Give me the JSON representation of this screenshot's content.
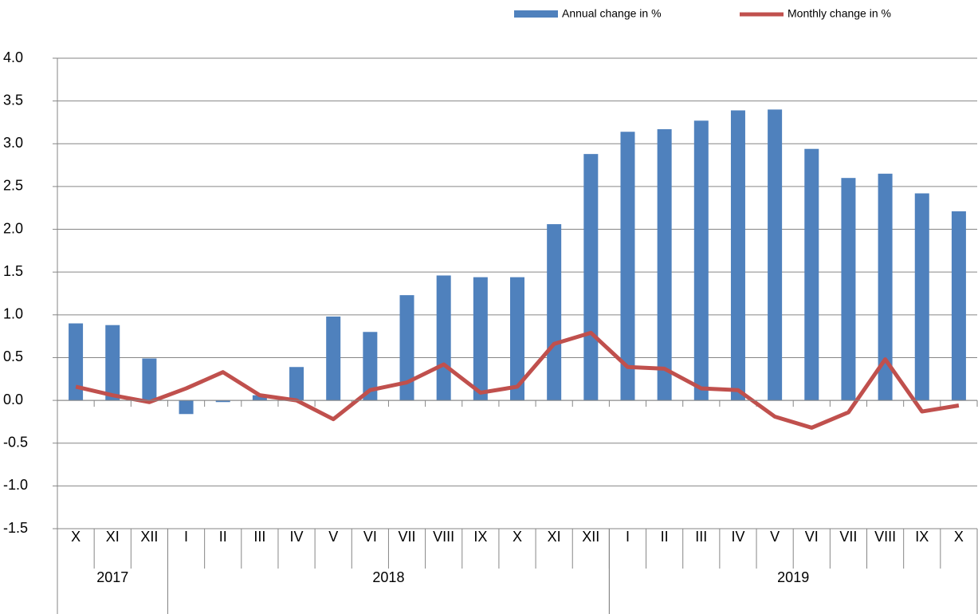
{
  "chart_data": {
    "type": "bar-line",
    "categories": [
      "X",
      "XI",
      "XII",
      "I",
      "II",
      "III",
      "IV",
      "V",
      "VI",
      "VII",
      "VIII",
      "IX",
      "X",
      "XI",
      "XII",
      "I",
      "II",
      "III",
      "IV",
      "V",
      "VI",
      "VII",
      "VIII",
      "IX",
      "X"
    ],
    "x_groups": [
      {
        "label": "2017",
        "count": 3
      },
      {
        "label": "2018",
        "count": 12
      },
      {
        "label": "2019",
        "count": 10
      }
    ],
    "series": [
      {
        "name": "Annual change in %",
        "type": "bar",
        "color": "#4f81bd",
        "values": [
          0.9,
          0.88,
          0.49,
          -0.16,
          -0.02,
          0.06,
          0.39,
          0.98,
          0.8,
          1.23,
          1.46,
          1.44,
          1.44,
          2.06,
          2.88,
          3.14,
          3.17,
          3.27,
          3.39,
          3.4,
          2.94,
          2.6,
          2.65,
          2.42,
          2.21
        ]
      },
      {
        "name": "Monthly change in %",
        "type": "line",
        "color": "#c0504d",
        "values": [
          0.16,
          0.06,
          -0.02,
          0.14,
          0.33,
          0.06,
          0.0,
          -0.22,
          0.12,
          0.21,
          0.42,
          0.09,
          0.16,
          0.66,
          0.79,
          0.39,
          0.37,
          0.14,
          0.12,
          -0.19,
          -0.32,
          -0.14,
          0.48,
          -0.13,
          -0.06
        ]
      }
    ],
    "ylim": [
      -1.5,
      4
    ],
    "yticks": [
      -1.5,
      {
        "value": -1,
        "label": "-1.0"
      },
      -0.5,
      {
        "value": 0,
        "label": "0.0"
      },
      0.5,
      {
        "value": 1,
        "label": "1.0"
      },
      1.5,
      {
        "value": 2,
        "label": "2.0"
      },
      2.5,
      {
        "value": 3,
        "label": "3.0"
      },
      3.5,
      {
        "value": 4,
        "label": "4.0"
      }
    ],
    "grid": true,
    "legend": "top-right"
  }
}
